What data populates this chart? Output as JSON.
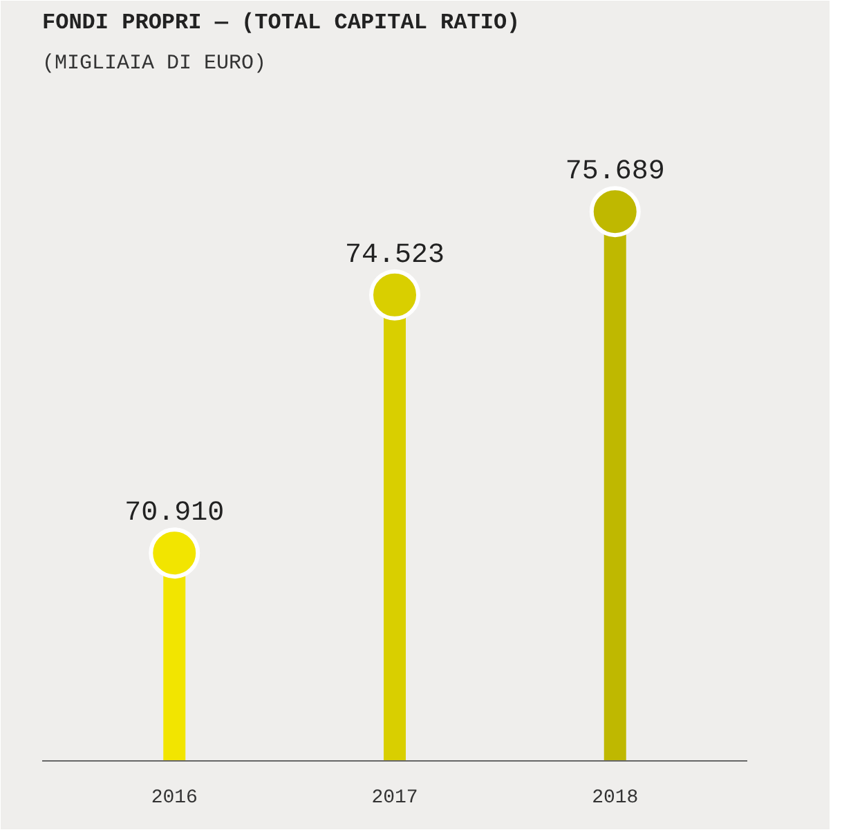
{
  "chart_data": {
    "type": "lollipop",
    "title": "FONDI PROPRI — (TOTAL CAPITAL RATIO)",
    "subtitle": "(MIGLIAIA DI EURO)",
    "categories": [
      "2016",
      "2017",
      "2018"
    ],
    "values": [
      70910,
      74523,
      75689
    ],
    "value_labels": [
      "70.910",
      "74.523",
      "75.689"
    ],
    "colors": [
      "#f2e500",
      "#d9cf00",
      "#bfb800"
    ],
    "ylim": [
      68000,
      77500
    ],
    "tick_labels": "x"
  }
}
